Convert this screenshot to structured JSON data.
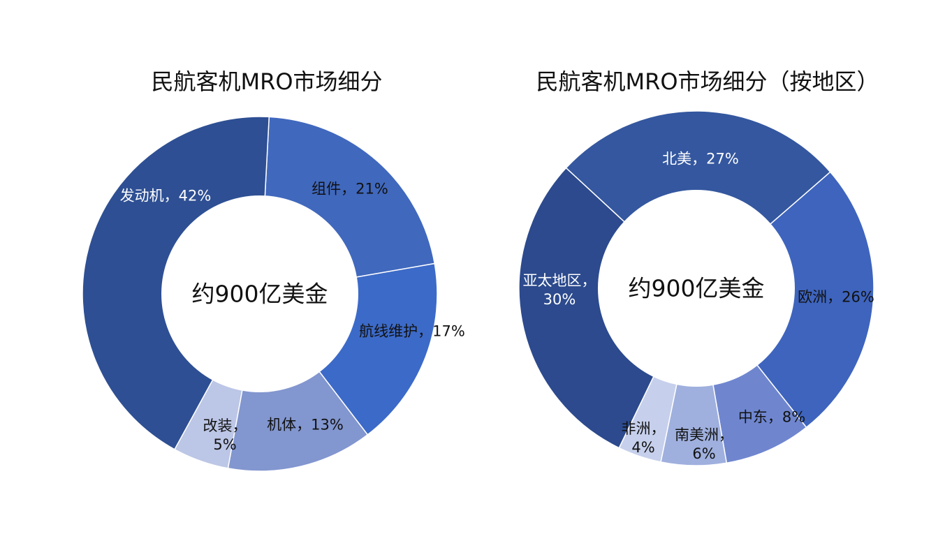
{
  "chart_data": [
    {
      "type": "pie",
      "title": "民航客机MRO市场细分",
      "center_text": "约900亿美金",
      "slices": [
        {
          "name": "组件",
          "value": 21,
          "label": [
            "组件，21%"
          ],
          "color": "#4068bd",
          "label_color": "#111111"
        },
        {
          "name": "航线维护",
          "value": 17,
          "label": [
            "航线维护，17%"
          ],
          "color": "#3c6ac8",
          "label_color": "#111111"
        },
        {
          "name": "机体",
          "value": 13,
          "label": [
            "机体，13%"
          ],
          "color": "#8296cf",
          "label_color": "#111111"
        },
        {
          "name": "改装",
          "value": 5,
          "label": [
            "改装，",
            "5%"
          ],
          "color": "#bcc6e6",
          "label_color": "#111111"
        },
        {
          "name": "发动机",
          "value": 42,
          "label": [
            "发动机，42%"
          ],
          "color": "#2e4f93",
          "label_color": "#ffffff"
        }
      ]
    },
    {
      "type": "pie",
      "title": "民航客机MRO市场细分（按地区）",
      "center_text": "约900亿美金",
      "slices": [
        {
          "name": "欧洲",
          "value": 26,
          "label": [
            "欧洲，26%"
          ],
          "color": "#3e64bd",
          "label_color": "#111111"
        },
        {
          "name": "中东",
          "value": 8,
          "label": [
            "中东，8%"
          ],
          "color": "#6f86cf",
          "label_color": "#111111"
        },
        {
          "name": "南美洲",
          "value": 6,
          "label": [
            "南美洲，",
            "6%"
          ],
          "color": "#9fb0de",
          "label_color": "#111111"
        },
        {
          "name": "非洲",
          "value": 4,
          "label": [
            "非洲，",
            "4%"
          ],
          "color": "#c6d0ec",
          "label_color": "#111111"
        },
        {
          "name": "亚太地区",
          "value": 30,
          "label": [
            "亚太地区，",
            "30%"
          ],
          "color": "#2c4a8d",
          "label_color": "#ffffff"
        },
        {
          "name": "北美",
          "value": 27,
          "label": [
            "北美，27%"
          ],
          "color": "#34579f",
          "label_color": "#ffffff"
        }
      ]
    }
  ]
}
